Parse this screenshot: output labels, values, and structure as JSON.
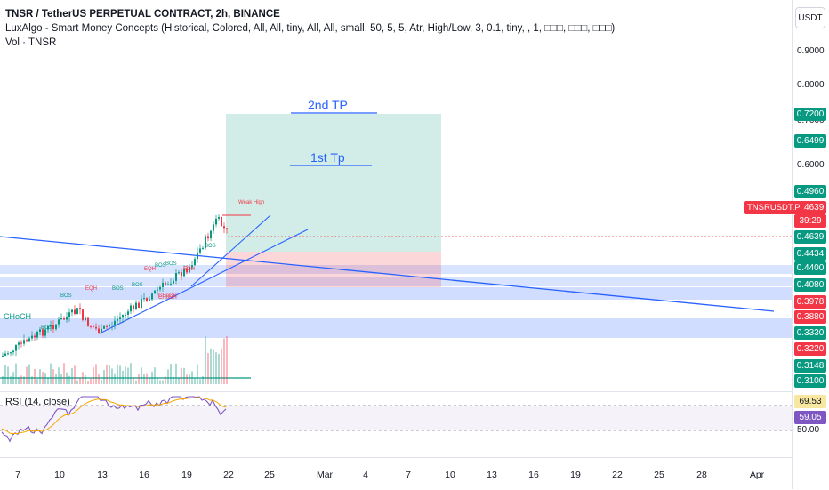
{
  "header": {
    "title": "TNSR / TetherUS PERPETUAL CONTRACT, 2h, BINANCE",
    "indicator": "LuxAlgo - Smart Money Concepts (Historical, Colored, All, All, tiny, All, All, small, 50, 5, 5, Atr, High/Low, 3, 0.1, tiny, , 1, □□□, □□□, □□□)",
    "volume": "Vol · TNSR"
  },
  "currency": "USDT",
  "price_axis": {
    "ticks": [
      "0.9000",
      "0.8000",
      "0.7000",
      "0.6000"
    ],
    "badges": [
      {
        "value": "0.7200",
        "color": "#089981"
      },
      {
        "value": "0.6499",
        "color": "#089981"
      },
      {
        "value": "0.4960",
        "color": "#089981"
      },
      {
        "value": "0.4639",
        "color": "#f23645"
      },
      {
        "value": "39:29",
        "color": "#f23645"
      },
      {
        "value": "0.4639",
        "color": "#089981"
      },
      {
        "value": "0.4434",
        "color": "#089981"
      },
      {
        "value": "0.4400",
        "color": "#089981"
      },
      {
        "value": "0.4080",
        "color": "#089981"
      },
      {
        "value": "0.3978",
        "color": "#f23645"
      },
      {
        "value": "0.3880",
        "color": "#f23645"
      },
      {
        "value": "0.3330",
        "color": "#089981"
      },
      {
        "value": "0.3220",
        "color": "#f23645"
      },
      {
        "value": "0.3148",
        "color": "#089981"
      },
      {
        "value": "0.3100",
        "color": "#089981"
      }
    ],
    "rsi_badges": [
      {
        "value": "69.53",
        "color": "#f7e7a1",
        "text": "#131722"
      },
      {
        "value": "59.05",
        "color": "#7e57c2",
        "text": "#ffffff"
      }
    ],
    "rsi_tick": "50.00"
  },
  "symbol_badge": "TNSRUSDT.P",
  "annotations": {
    "tp2": "2nd TP",
    "tp1": "1st Tp",
    "weak_high": "Weak High",
    "choch": "CHoCH",
    "smc_labels": [
      "BOS",
      "EQH",
      "BOS",
      "BOS",
      "EQH",
      "BOS",
      "BOS",
      "CHoCH",
      "BOS",
      "EQH",
      "CHoCH",
      "BOS"
    ]
  },
  "rsi": {
    "label": "RSI (14, close)"
  },
  "time_axis": [
    "7",
    "10",
    "13",
    "16",
    "19",
    "22",
    "25",
    "Mar",
    "4",
    "7",
    "10",
    "13",
    "16",
    "19",
    "22",
    "25",
    "28",
    "Apr"
  ],
  "colors": {
    "up": "#089981",
    "down": "#f23645",
    "accent": "#2962ff",
    "rsi": "#7e57c2"
  }
}
